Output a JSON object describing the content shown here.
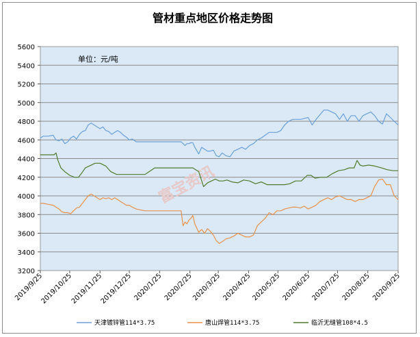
{
  "chart_data": {
    "type": "line",
    "title": "管材重点地区价格走势图",
    "unit_label": "单位：元/吨",
    "watermark": "富宝资讯",
    "ylim": [
      3200,
      5600
    ],
    "yticks": [
      3200,
      3400,
      3600,
      3800,
      4000,
      4200,
      4400,
      4600,
      4800,
      5000,
      5200,
      5400,
      5600
    ],
    "x_range": [
      "2019/9/25",
      "2020/9/25"
    ],
    "x_tick_labels": [
      "2019/9/25",
      "2019/10/25",
      "2019/11/25",
      "2019/12/25",
      "2020/1/25",
      "2020/2/25",
      "2020/3/25",
      "2020/4/25",
      "2020/5/25",
      "2020/6/25",
      "2020/7/25",
      "2020/8/25",
      "2020/9/25"
    ],
    "grid": true,
    "legend_position": "bottom",
    "plot_background": "#dbe9f7",
    "series": [
      {
        "name": "天津镀锌管114*3.75",
        "color": "#6a9fd8",
        "x": [
          "2019/9/25",
          "2019/9/28",
          "2019/10/3",
          "2019/10/8",
          "2019/10/11",
          "2019/10/14",
          "2019/10/17",
          "2019/10/20",
          "2019/10/23",
          "2019/10/26",
          "2019/10/29",
          "2019/11/1",
          "2019/11/4",
          "2019/11/7",
          "2019/11/10",
          "2019/11/13",
          "2019/11/16",
          "2019/11/19",
          "2019/11/22",
          "2019/11/25",
          "2019/11/28",
          "2019/12/1",
          "2019/12/4",
          "2019/12/7",
          "2019/12/10",
          "2019/12/13",
          "2019/12/16",
          "2019/12/19",
          "2019/12/22",
          "2019/12/25",
          "2019/12/28",
          "2020/1/1",
          "2020/1/5",
          "2020/1/10",
          "2020/1/15",
          "2020/1/20",
          "2020/1/25",
          "2020/2/1",
          "2020/2/10",
          "2020/2/16",
          "2020/2/18",
          "2020/2/20",
          "2020/2/22",
          "2020/2/24",
          "2020/2/26",
          "2020/2/28",
          "2020/3/1",
          "2020/3/5",
          "2020/3/8",
          "2020/3/11",
          "2020/3/14",
          "2020/3/17",
          "2020/3/20",
          "2020/3/23",
          "2020/3/26",
          "2020/3/29",
          "2020/4/2",
          "2020/4/6",
          "2020/4/10",
          "2020/4/14",
          "2020/4/18",
          "2020/4/22",
          "2020/4/26",
          "2020/4/30",
          "2020/5/4",
          "2020/5/8",
          "2020/5/12",
          "2020/5/16",
          "2020/5/20",
          "2020/5/24",
          "2020/5/28",
          "2020/6/1",
          "2020/6/5",
          "2020/6/9",
          "2020/6/13",
          "2020/6/17",
          "2020/6/21",
          "2020/6/25",
          "2020/6/29",
          "2020/7/3",
          "2020/7/7",
          "2020/7/11",
          "2020/7/15",
          "2020/7/19",
          "2020/7/23",
          "2020/7/27",
          "2020/7/31",
          "2020/8/4",
          "2020/8/8",
          "2020/8/12",
          "2020/8/16",
          "2020/8/20",
          "2020/8/24",
          "2020/8/28",
          "2020/9/1",
          "2020/9/5",
          "2020/9/9",
          "2020/9/13",
          "2020/9/17",
          "2020/9/21",
          "2020/9/25"
        ],
        "y": [
          4620,
          4640,
          4640,
          4650,
          4600,
          4590,
          4610,
          4560,
          4580,
          4620,
          4640,
          4610,
          4660,
          4690,
          4700,
          4760,
          4780,
          4760,
          4740,
          4720,
          4740,
          4700,
          4690,
          4660,
          4680,
          4700,
          4680,
          4650,
          4630,
          4600,
          4610,
          4580,
          4580,
          4580,
          4580,
          4580,
          4580,
          4580,
          4580,
          4580,
          4560,
          4540,
          4560,
          4560,
          4570,
          4570,
          4520,
          4450,
          4520,
          4500,
          4480,
          4480,
          4490,
          4430,
          4420,
          4460,
          4430,
          4420,
          4480,
          4500,
          4520,
          4500,
          4540,
          4560,
          4600,
          4620,
          4650,
          4680,
          4680,
          4680,
          4700,
          4760,
          4800,
          4820,
          4820,
          4820,
          4830,
          4840,
          4760,
          4820,
          4870,
          4920,
          4920,
          4900,
          4880,
          4820,
          4880,
          4800,
          4860,
          4860,
          4800,
          4860,
          4880,
          4900,
          4860,
          4800,
          4770,
          4880,
          4840,
          4800,
          4760
        ]
      },
      {
        "name": "唐山焊管114*3.75",
        "color": "#e8914a",
        "x": [
          "2019/9/25",
          "2019/9/28",
          "2019/10/3",
          "2019/10/8",
          "2019/10/11",
          "2019/10/14",
          "2019/10/17",
          "2019/10/20",
          "2019/10/23",
          "2019/10/26",
          "2019/10/29",
          "2019/11/1",
          "2019/11/4",
          "2019/11/7",
          "2019/11/10",
          "2019/11/13",
          "2019/11/16",
          "2019/11/19",
          "2019/11/22",
          "2019/11/25",
          "2019/11/28",
          "2019/12/1",
          "2019/12/4",
          "2019/12/7",
          "2019/12/10",
          "2019/12/13",
          "2019/12/16",
          "2019/12/19",
          "2019/12/22",
          "2019/12/25",
          "2019/12/28",
          "2020/1/1",
          "2020/1/5",
          "2020/1/10",
          "2020/1/15",
          "2020/1/20",
          "2020/1/25",
          "2020/2/1",
          "2020/2/10",
          "2020/2/16",
          "2020/2/18",
          "2020/2/20",
          "2020/2/22",
          "2020/2/24",
          "2020/2/26",
          "2020/2/28",
          "2020/3/1",
          "2020/3/5",
          "2020/3/8",
          "2020/3/11",
          "2020/3/14",
          "2020/3/17",
          "2020/3/20",
          "2020/3/23",
          "2020/3/26",
          "2020/3/29",
          "2020/4/2",
          "2020/4/6",
          "2020/4/10",
          "2020/4/14",
          "2020/4/18",
          "2020/4/22",
          "2020/4/26",
          "2020/4/30",
          "2020/5/4",
          "2020/5/8",
          "2020/5/12",
          "2020/5/16",
          "2020/5/20",
          "2020/5/24",
          "2020/5/28",
          "2020/6/1",
          "2020/6/5",
          "2020/6/9",
          "2020/6/13",
          "2020/6/17",
          "2020/6/21",
          "2020/6/25",
          "2020/6/29",
          "2020/7/3",
          "2020/7/7",
          "2020/7/11",
          "2020/7/15",
          "2020/7/19",
          "2020/7/23",
          "2020/7/27",
          "2020/7/31",
          "2020/8/4",
          "2020/8/8",
          "2020/8/12",
          "2020/8/16",
          "2020/8/20",
          "2020/8/24",
          "2020/8/28",
          "2020/9/1",
          "2020/9/5",
          "2020/9/9",
          "2020/9/13",
          "2020/9/17",
          "2020/9/21",
          "2020/9/25"
        ],
        "y": [
          3920,
          3920,
          3910,
          3900,
          3880,
          3860,
          3830,
          3820,
          3820,
          3810,
          3840,
          3870,
          3880,
          3920,
          3960,
          4000,
          4020,
          4000,
          3980,
          3960,
          3980,
          3970,
          3980,
          3960,
          3980,
          3960,
          3940,
          3920,
          3900,
          3900,
          3880,
          3860,
          3850,
          3840,
          3840,
          3840,
          3840,
          3840,
          3840,
          3840,
          3680,
          3720,
          3700,
          3740,
          3760,
          3790,
          3700,
          3610,
          3640,
          3600,
          3650,
          3620,
          3580,
          3520,
          3490,
          3510,
          3540,
          3550,
          3570,
          3600,
          3580,
          3560,
          3560,
          3580,
          3680,
          3720,
          3760,
          3820,
          3800,
          3840,
          3840,
          3860,
          3870,
          3880,
          3880,
          3870,
          3890,
          3860,
          3880,
          3900,
          3940,
          3960,
          3980,
          3960,
          3990,
          4000,
          3980,
          3960,
          3960,
          3940,
          3960,
          3960,
          3980,
          4000,
          4100,
          4170,
          4180,
          4120,
          4120,
          4000,
          3960
        ]
      },
      {
        "name": "临沂无缝管108*4.5",
        "color": "#4f7a2c",
        "x": [
          "2019/9/25",
          "2019/10/1",
          "2019/10/6",
          "2019/10/9",
          "2019/10/11",
          "2019/10/13",
          "2019/10/16",
          "2019/10/20",
          "2019/10/25",
          "2019/10/30",
          "2019/11/3",
          "2019/11/6",
          "2019/11/10",
          "2019/11/14",
          "2019/11/20",
          "2019/11/25",
          "2019/12/1",
          "2019/12/6",
          "2019/12/12",
          "2019/12/18",
          "2019/12/25",
          "2020/1/1",
          "2020/1/10",
          "2020/1/20",
          "2020/1/25",
          "2020/2/1",
          "2020/2/10",
          "2020/2/16",
          "2020/2/20",
          "2020/2/28",
          "2020/3/5",
          "2020/3/10",
          "2020/3/14",
          "2020/3/18",
          "2020/3/22",
          "2020/3/26",
          "2020/3/30",
          "2020/4/3",
          "2020/4/8",
          "2020/4/14",
          "2020/4/20",
          "2020/4/26",
          "2020/5/2",
          "2020/5/8",
          "2020/5/14",
          "2020/5/20",
          "2020/5/26",
          "2020/6/1",
          "2020/6/6",
          "2020/6/12",
          "2020/6/18",
          "2020/6/24",
          "2020/6/28",
          "2020/7/2",
          "2020/7/8",
          "2020/7/14",
          "2020/7/20",
          "2020/7/26",
          "2020/8/1",
          "2020/8/6",
          "2020/8/11",
          "2020/8/14",
          "2020/8/17",
          "2020/8/20",
          "2020/8/26",
          "2020/9/1",
          "2020/9/8",
          "2020/9/14",
          "2020/9/20",
          "2020/9/25"
        ],
        "y": [
          4440,
          4440,
          4440,
          4440,
          4460,
          4380,
          4300,
          4260,
          4220,
          4200,
          4200,
          4240,
          4300,
          4320,
          4350,
          4350,
          4320,
          4260,
          4230,
          4230,
          4230,
          4230,
          4230,
          4300,
          4300,
          4300,
          4300,
          4300,
          4300,
          4300,
          4260,
          4100,
          4140,
          4160,
          4180,
          4160,
          4160,
          4170,
          4150,
          4140,
          4170,
          4160,
          4130,
          4150,
          4120,
          4120,
          4120,
          4120,
          4130,
          4160,
          4160,
          4220,
          4220,
          4190,
          4200,
          4200,
          4240,
          4270,
          4280,
          4300,
          4300,
          4380,
          4330,
          4320,
          4330,
          4320,
          4300,
          4280,
          4270,
          4270
        ]
      }
    ]
  }
}
